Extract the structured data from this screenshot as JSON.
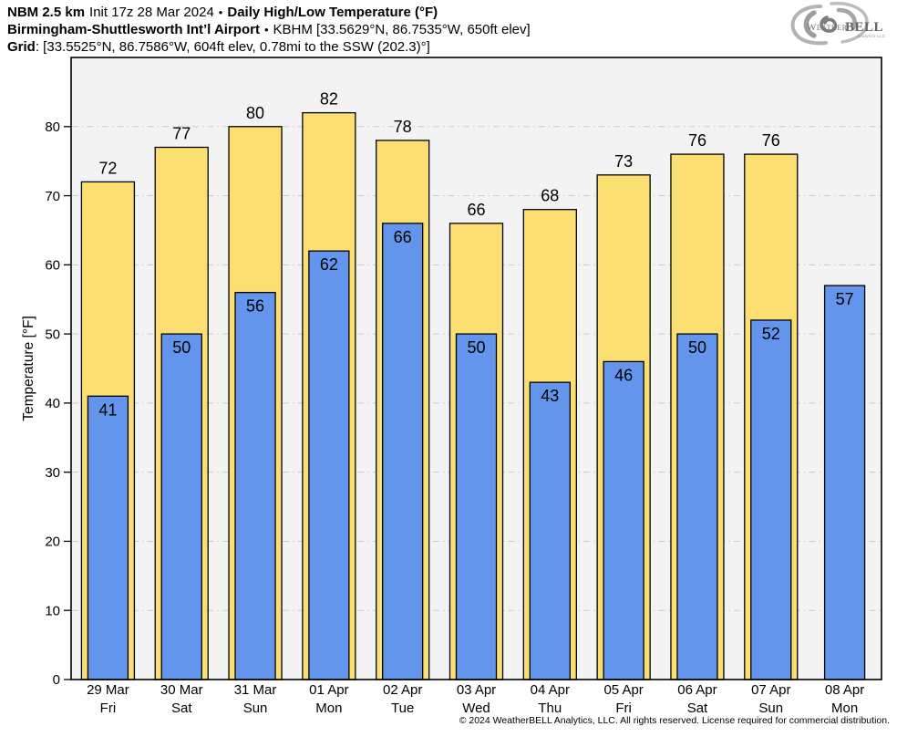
{
  "header": {
    "line1": {
      "model": "NBM 2.5 km",
      "init": "Init 17z 28 Mar 2024",
      "sep": "•",
      "product": "Daily High/Low Temperature (°F)"
    },
    "line2": {
      "station": "Birmingham-Shuttlesworth Int’l Airport",
      "sep": "•",
      "details": "KBHM [33.5629°N, 86.7535°W, 650ft elev]"
    },
    "line3": {
      "label": "Grid",
      "details": ": [33.5525°N, 86.7586°W, 604ft elev, 0.78mi to the SSW (202.3)°]"
    }
  },
  "logo": {
    "weather": "Weather",
    "bell": "BELL",
    "tagline": "Analytics LLC"
  },
  "footer": {
    "copyright": "© 2024 WeatherBELL Analytics, LLC. All rights reserved. License required for commercial distribution."
  },
  "chart_data": {
    "type": "bar",
    "title": "Daily High/Low Temperature (°F)",
    "ylabel": "Temperature [°F]",
    "ylim": [
      0,
      90
    ],
    "yticks": [
      0,
      10,
      20,
      30,
      40,
      50,
      60,
      70,
      80
    ],
    "grid": "horizontal dash-dot",
    "legend": "none",
    "categories": [
      {
        "date": "29 Mar",
        "day": "Fri"
      },
      {
        "date": "30 Mar",
        "day": "Sat"
      },
      {
        "date": "31 Mar",
        "day": "Sun"
      },
      {
        "date": "01 Apr",
        "day": "Mon"
      },
      {
        "date": "02 Apr",
        "day": "Tue"
      },
      {
        "date": "03 Apr",
        "day": "Wed"
      },
      {
        "date": "04 Apr",
        "day": "Thu"
      },
      {
        "date": "05 Apr",
        "day": "Fri"
      },
      {
        "date": "06 Apr",
        "day": "Sat"
      },
      {
        "date": "07 Apr",
        "day": "Sun"
      },
      {
        "date": "08 Apr",
        "day": "Mon"
      }
    ],
    "series": [
      {
        "name": "High",
        "color": "#fcdf72",
        "values": [
          72,
          77,
          80,
          82,
          78,
          66,
          68,
          73,
          76,
          76,
          null
        ]
      },
      {
        "name": "Low",
        "color": "#6495ed",
        "values": [
          41,
          50,
          56,
          62,
          66,
          50,
          43,
          46,
          50,
          52,
          57
        ]
      }
    ],
    "colors": {
      "plot_bg": "#f3f3f3",
      "grid": "#c9c9c9",
      "outline": "#000000",
      "frame": "#000000"
    }
  }
}
